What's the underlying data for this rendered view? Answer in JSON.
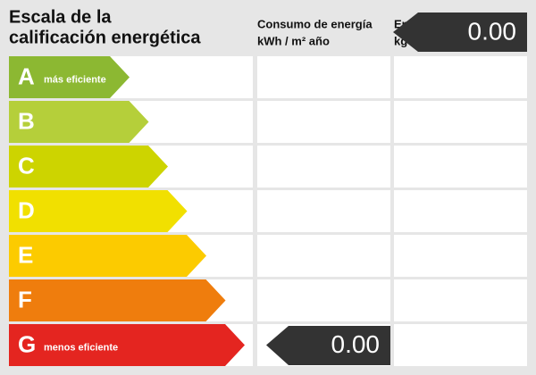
{
  "header": {
    "title": [
      "Escala de la",
      "calificación energética"
    ],
    "consumption": [
      "Consumo de energía",
      "kWh / m² año"
    ],
    "emissions": [
      "Em",
      "kg"
    ],
    "emissions_value": "0.00"
  },
  "rows": [
    {
      "letter": "A",
      "label": "más eficiente",
      "color": "#8cb832"
    },
    {
      "letter": "B",
      "color": "#b5cf3a"
    },
    {
      "letter": "C",
      "color": "#cdd400"
    },
    {
      "letter": "D",
      "color": "#f1e000"
    },
    {
      "letter": "E",
      "color": "#fccb00"
    },
    {
      "letter": "F",
      "color": "#ef7d0d"
    },
    {
      "letter": "G",
      "label": "menos eficiente",
      "color": "#e42520",
      "consumption": "0.00"
    }
  ]
}
